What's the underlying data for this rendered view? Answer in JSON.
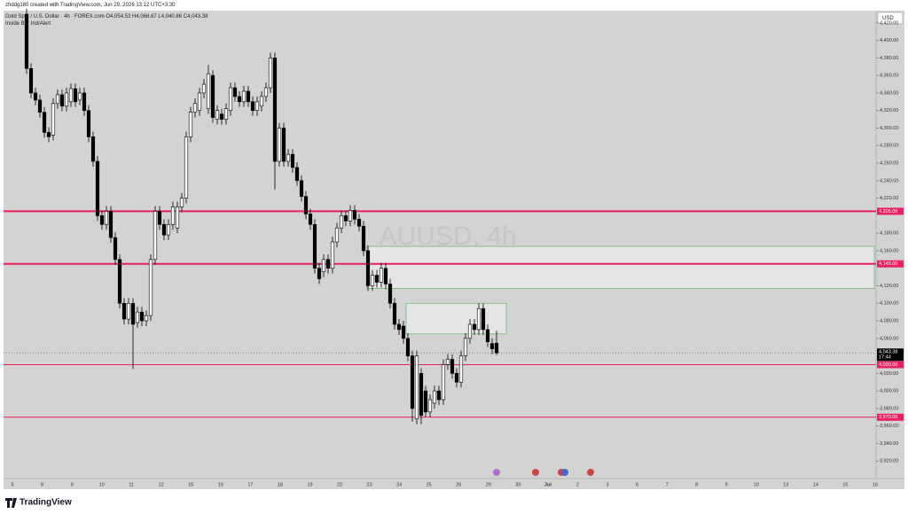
{
  "chart_data": {
    "type": "candlestick",
    "credit": "zhddg180 created with TradingView.com, Jun 29, 2026 13:12 UTC+3:30",
    "title": "Gold Spot / U.S. Dollar · 4h · FOREX.com O4,054.53 H4,068.67 L4,040.86 C4,043.38",
    "indicator": "Inside Bar Ind/Alert",
    "watermark": "AUUSD, 4h",
    "currency": "USD",
    "brand": "TradingView",
    "up_color": "#ffffff",
    "down_color": "#000000",
    "open": [
      4430,
      4368,
      4340,
      4332,
      4318,
      4295,
      4292,
      4328,
      4338,
      4325,
      4330,
      4345,
      4332,
      4340,
      4320,
      4290,
      4262,
      4200,
      4190,
      4205,
      4175,
      4150,
      4100,
      4082,
      4100,
      4078,
      4090,
      4080,
      4086,
      4150,
      4205,
      4190,
      4178,
      4190,
      4186,
      4210,
      4220,
      4290,
      4318,
      4320,
      4340,
      4322,
      4360,
      4310,
      4316,
      4310,
      4320,
      4346,
      4336,
      4330,
      4342,
      4330,
      4320,
      4325,
      4336,
      4346,
      4380,
      4262,
      4300,
      4262,
      4270,
      4255,
      4240,
      4222,
      4202,
      4190,
      4140,
      4136,
      4150,
      4140,
      4170,
      4186,
      4200,
      4194,
      4206,
      4196,
      4188,
      4160,
      4120,
      4132,
      4124,
      4140,
      4122,
      4100,
      4076,
      4074,
      4060,
      4040,
      3968,
      4020,
      4000,
      3976,
      3986,
      4000,
      3990,
      4030,
      4036,
      4020,
      4010,
      4040,
      4060,
      4076,
      4070,
      4094,
      4070,
      4054,
      4054.53
    ],
    "high": [
      4436,
      4374,
      4346,
      4338,
      4324,
      4301,
      4334,
      4344,
      4344,
      4346,
      4351,
      4351,
      4346,
      4346,
      4326,
      4296,
      4268,
      4206,
      4211,
      4211,
      4181,
      4156,
      4106,
      4106,
      4106,
      4096,
      4096,
      4092,
      4156,
      4211,
      4211,
      4196,
      4196,
      4216,
      4216,
      4226,
      4296,
      4324,
      4334,
      4346,
      4356,
      4372,
      4366,
      4326,
      4322,
      4328,
      4352,
      4352,
      4342,
      4348,
      4348,
      4336,
      4336,
      4342,
      4352,
      4386,
      4386,
      4306,
      4306,
      4276,
      4276,
      4261,
      4246,
      4228,
      4208,
      4196,
      4146,
      4156,
      4156,
      4176,
      4192,
      4206,
      4206,
      4212,
      4212,
      4202,
      4194,
      4166,
      4138,
      4138,
      4146,
      4146,
      4128,
      4106,
      4082,
      4080,
      4066,
      4046,
      4046,
      4026,
      4006,
      3996,
      4006,
      4006,
      4036,
      4042,
      4042,
      4026,
      4046,
      4066,
      4082,
      4082,
      4100,
      4100,
      4076,
      4060,
      4068.67
    ],
    "low": [
      4362,
      4334,
      4326,
      4312,
      4289,
      4284,
      4286,
      4322,
      4319,
      4319,
      4324,
      4324,
      4326,
      4314,
      4284,
      4256,
      4194,
      4184,
      4184,
      4169,
      4144,
      4094,
      4076,
      4076,
      4025,
      4072,
      4074,
      4074,
      4080,
      4144,
      4184,
      4172,
      4172,
      4184,
      4180,
      4204,
      4214,
      4284,
      4312,
      4314,
      4334,
      4316,
      4306,
      4304,
      4304,
      4304,
      4314,
      4330,
      4324,
      4324,
      4324,
      4314,
      4314,
      4319,
      4330,
      4340,
      4230,
      4256,
      4256,
      4256,
      4249,
      4234,
      4216,
      4196,
      4184,
      4134,
      4122,
      4130,
      4134,
      4134,
      4164,
      4180,
      4188,
      4188,
      4190,
      4182,
      4154,
      4114,
      4114,
      4118,
      4118,
      4116,
      4094,
      4070,
      4064,
      4054,
      4034,
      3965,
      3962,
      3962,
      3970,
      3970,
      3980,
      3984,
      3984,
      4024,
      4014,
      4004,
      4004,
      4034,
      4054,
      4064,
      4064,
      4064,
      4050,
      4042,
      4040.86
    ],
    "close": [
      4368,
      4340,
      4332,
      4318,
      4295,
      4290,
      4328,
      4338,
      4325,
      4340,
      4345,
      4330,
      4340,
      4320,
      4290,
      4262,
      4200,
      4190,
      4205,
      4175,
      4150,
      4100,
      4082,
      4100,
      4076,
      4090,
      4080,
      4086,
      4150,
      4205,
      4190,
      4178,
      4190,
      4210,
      4210,
      4220,
      4290,
      4318,
      4328,
      4340,
      4350,
      4362,
      4312,
      4320,
      4310,
      4322,
      4346,
      4336,
      4330,
      4342,
      4330,
      4320,
      4330,
      4336,
      4346,
      4380,
      4262,
      4300,
      4262,
      4270,
      4255,
      4240,
      4222,
      4202,
      4190,
      4140,
      4128,
      4150,
      4140,
      4170,
      4186,
      4200,
      4194,
      4206,
      4196,
      4188,
      4160,
      4120,
      4132,
      4124,
      4140,
      4122,
      4100,
      4076,
      4070,
      4060,
      4040,
      3980,
      4040,
      3972,
      3976,
      3990,
      4000,
      3990,
      4030,
      4036,
      4020,
      4010,
      4040,
      4060,
      4076,
      4070,
      4094,
      4070,
      4056,
      4048,
      4043.38
    ],
    "x_labels": [
      "5",
      "8",
      "9",
      "10",
      "11",
      "12",
      "15",
      "16",
      "17",
      "18",
      "19",
      "22",
      "23",
      "24",
      "25",
      "26",
      "29",
      "30",
      "Jul",
      "2",
      "3",
      "6",
      "7",
      "8",
      "9",
      "10",
      "13",
      "14",
      "15",
      "16"
    ],
    "ylim": [
      3900,
      4434
    ],
    "yticks": [
      {
        "value": 3920,
        "label": "3,920.00"
      },
      {
        "value": 3940,
        "label": "3,940.00"
      },
      {
        "value": 3960,
        "label": "3,960.00"
      },
      {
        "value": 3980,
        "label": "3,980.00"
      },
      {
        "value": 4000,
        "label": "4,000.00"
      },
      {
        "value": 4020,
        "label": "4,020.00"
      },
      {
        "value": 4060,
        "label": "4,060.00"
      },
      {
        "value": 4080,
        "label": "4,080.00"
      },
      {
        "value": 4100,
        "label": "4,100.00"
      },
      {
        "value": 4120,
        "label": "4,120.00"
      },
      {
        "value": 4160,
        "label": "4,160.00"
      },
      {
        "value": 4180,
        "label": "4,180.00"
      },
      {
        "value": 4220,
        "label": "4,220.00"
      },
      {
        "value": 4240,
        "label": "4,240.00"
      },
      {
        "value": 4260,
        "label": "4,260.00"
      },
      {
        "value": 4280,
        "label": "4,280.00"
      },
      {
        "value": 4300,
        "label": "4,300.00"
      },
      {
        "value": 4320,
        "label": "4,320.00"
      },
      {
        "value": 4340,
        "label": "4,340.00"
      },
      {
        "value": 4360,
        "label": "4,360.00"
      },
      {
        "value": 4380,
        "label": "4,380.00"
      },
      {
        "value": 4400,
        "label": "4,400.00"
      },
      {
        "value": 4420,
        "label": "4,420.00"
      }
    ],
    "levels": [
      {
        "value": 4205,
        "label": "4,205.00",
        "width": 2
      },
      {
        "value": 4145,
        "label": "4,145.00",
        "width": 2
      },
      {
        "value": 4030,
        "label": "4,030.00",
        "width": 1
      },
      {
        "value": 3970,
        "label": "3,970.00",
        "width": 1
      }
    ],
    "level_color": "#e91e63",
    "zones": [
      {
        "top": 4165,
        "bottom": 4117
      },
      {
        "top": 4100,
        "bottom": 4065
      }
    ],
    "last_price": {
      "value": 4043.38,
      "label": "4,043.38",
      "time": "17:44"
    }
  }
}
